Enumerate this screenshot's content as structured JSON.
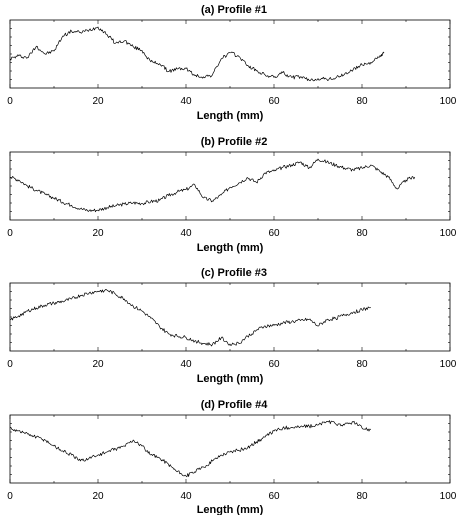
{
  "chart_data": [
    {
      "type": "line",
      "title": "(a) Profile #1",
      "xlabel": "Length (mm)",
      "ylabel": "",
      "xlim": [
        0,
        100
      ],
      "xticks": [
        "0",
        "20",
        "40",
        "60",
        "80",
        "100"
      ],
      "y_tick_labels": false,
      "ylim": [
        0,
        1
      ],
      "grid": false,
      "series": [
        {
          "x": [
            0,
            2,
            4,
            6,
            8,
            10,
            12,
            14,
            16,
            18,
            20,
            22,
            24,
            26,
            28,
            30,
            32,
            34,
            36,
            38,
            40,
            42,
            44,
            46,
            48,
            50,
            52,
            54,
            56,
            58,
            60,
            62,
            64,
            66,
            68,
            70,
            72,
            74,
            76,
            78,
            80,
            82,
            84,
            85
          ],
          "y": [
            0.42,
            0.47,
            0.44,
            0.63,
            0.5,
            0.55,
            0.8,
            0.88,
            0.86,
            0.9,
            0.95,
            0.83,
            0.68,
            0.72,
            0.62,
            0.56,
            0.37,
            0.34,
            0.21,
            0.25,
            0.26,
            0.14,
            0.12,
            0.15,
            0.42,
            0.52,
            0.46,
            0.31,
            0.22,
            0.15,
            0.11,
            0.19,
            0.11,
            0.12,
            0.06,
            0.09,
            0.08,
            0.1,
            0.16,
            0.24,
            0.32,
            0.36,
            0.45,
            0.52
          ]
        }
      ]
    },
    {
      "type": "line",
      "title": "(b) Profile #2",
      "xlabel": "Length (mm)",
      "ylabel": "",
      "xlim": [
        0,
        100
      ],
      "xticks": [
        "0",
        "20",
        "40",
        "60",
        "80",
        "100"
      ],
      "y_tick_labels": false,
      "ylim": [
        0,
        1
      ],
      "grid": false,
      "series": [
        {
          "x": [
            0,
            2,
            4,
            6,
            8,
            10,
            12,
            14,
            16,
            18,
            20,
            22,
            24,
            26,
            28,
            30,
            32,
            34,
            36,
            38,
            40,
            42,
            44,
            46,
            48,
            50,
            52,
            54,
            56,
            58,
            60,
            62,
            64,
            66,
            68,
            70,
            72,
            74,
            76,
            78,
            80,
            82,
            84,
            86,
            88,
            90,
            92
          ],
          "y": [
            0.65,
            0.6,
            0.5,
            0.43,
            0.36,
            0.3,
            0.23,
            0.18,
            0.12,
            0.09,
            0.1,
            0.14,
            0.17,
            0.2,
            0.22,
            0.21,
            0.24,
            0.26,
            0.34,
            0.4,
            0.44,
            0.52,
            0.3,
            0.25,
            0.35,
            0.48,
            0.55,
            0.64,
            0.56,
            0.72,
            0.75,
            0.81,
            0.85,
            0.9,
            0.8,
            0.95,
            0.9,
            0.85,
            0.8,
            0.77,
            0.8,
            0.85,
            0.75,
            0.65,
            0.45,
            0.6,
            0.65
          ]
        }
      ]
    },
    {
      "type": "line",
      "title": "(c) Profile #3",
      "xlabel": "Length (mm)",
      "ylabel": "",
      "xlim": [
        0,
        100
      ],
      "xticks": [
        "0",
        "20",
        "40",
        "60",
        "80",
        "100"
      ],
      "y_tick_labels": false,
      "ylim": [
        0,
        1
      ],
      "grid": false,
      "series": [
        {
          "x": [
            0,
            2,
            4,
            6,
            8,
            10,
            12,
            14,
            16,
            18,
            20,
            22,
            24,
            26,
            28,
            30,
            32,
            34,
            36,
            38,
            40,
            42,
            44,
            46,
            48,
            50,
            52,
            54,
            56,
            58,
            60,
            62,
            64,
            66,
            68,
            70,
            72,
            74,
            76,
            78,
            80,
            82
          ],
          "y": [
            0.45,
            0.52,
            0.6,
            0.65,
            0.7,
            0.73,
            0.76,
            0.8,
            0.86,
            0.9,
            0.93,
            0.95,
            0.88,
            0.8,
            0.68,
            0.6,
            0.48,
            0.34,
            0.22,
            0.18,
            0.16,
            0.1,
            0.06,
            0.04,
            0.15,
            0.05,
            0.06,
            0.18,
            0.28,
            0.35,
            0.36,
            0.4,
            0.42,
            0.44,
            0.46,
            0.35,
            0.45,
            0.48,
            0.53,
            0.58,
            0.62,
            0.66
          ]
        }
      ]
    },
    {
      "type": "line",
      "title": "(d) Profile #4",
      "xlabel": "Length (mm)",
      "ylabel": "",
      "xlim": [
        0,
        100
      ],
      "xticks": [
        "0",
        "20",
        "40",
        "60",
        "80",
        "100"
      ],
      "y_tick_labels": false,
      "ylim": [
        0,
        1
      ],
      "grid": false,
      "series": [
        {
          "x": [
            0,
            2,
            4,
            6,
            8,
            10,
            12,
            14,
            16,
            18,
            20,
            22,
            24,
            26,
            28,
            30,
            32,
            34,
            36,
            38,
            40,
            42,
            44,
            46,
            48,
            50,
            52,
            54,
            56,
            58,
            60,
            62,
            64,
            66,
            68,
            70,
            72,
            74,
            76,
            78,
            80,
            82
          ],
          "y": [
            0.85,
            0.8,
            0.75,
            0.7,
            0.65,
            0.55,
            0.47,
            0.4,
            0.3,
            0.35,
            0.4,
            0.45,
            0.5,
            0.55,
            0.65,
            0.55,
            0.4,
            0.35,
            0.25,
            0.12,
            0.05,
            0.12,
            0.2,
            0.3,
            0.4,
            0.45,
            0.48,
            0.52,
            0.62,
            0.7,
            0.8,
            0.85,
            0.86,
            0.87,
            0.88,
            0.9,
            0.96,
            0.92,
            0.9,
            0.95,
            0.85,
            0.82
          ]
        }
      ]
    }
  ]
}
